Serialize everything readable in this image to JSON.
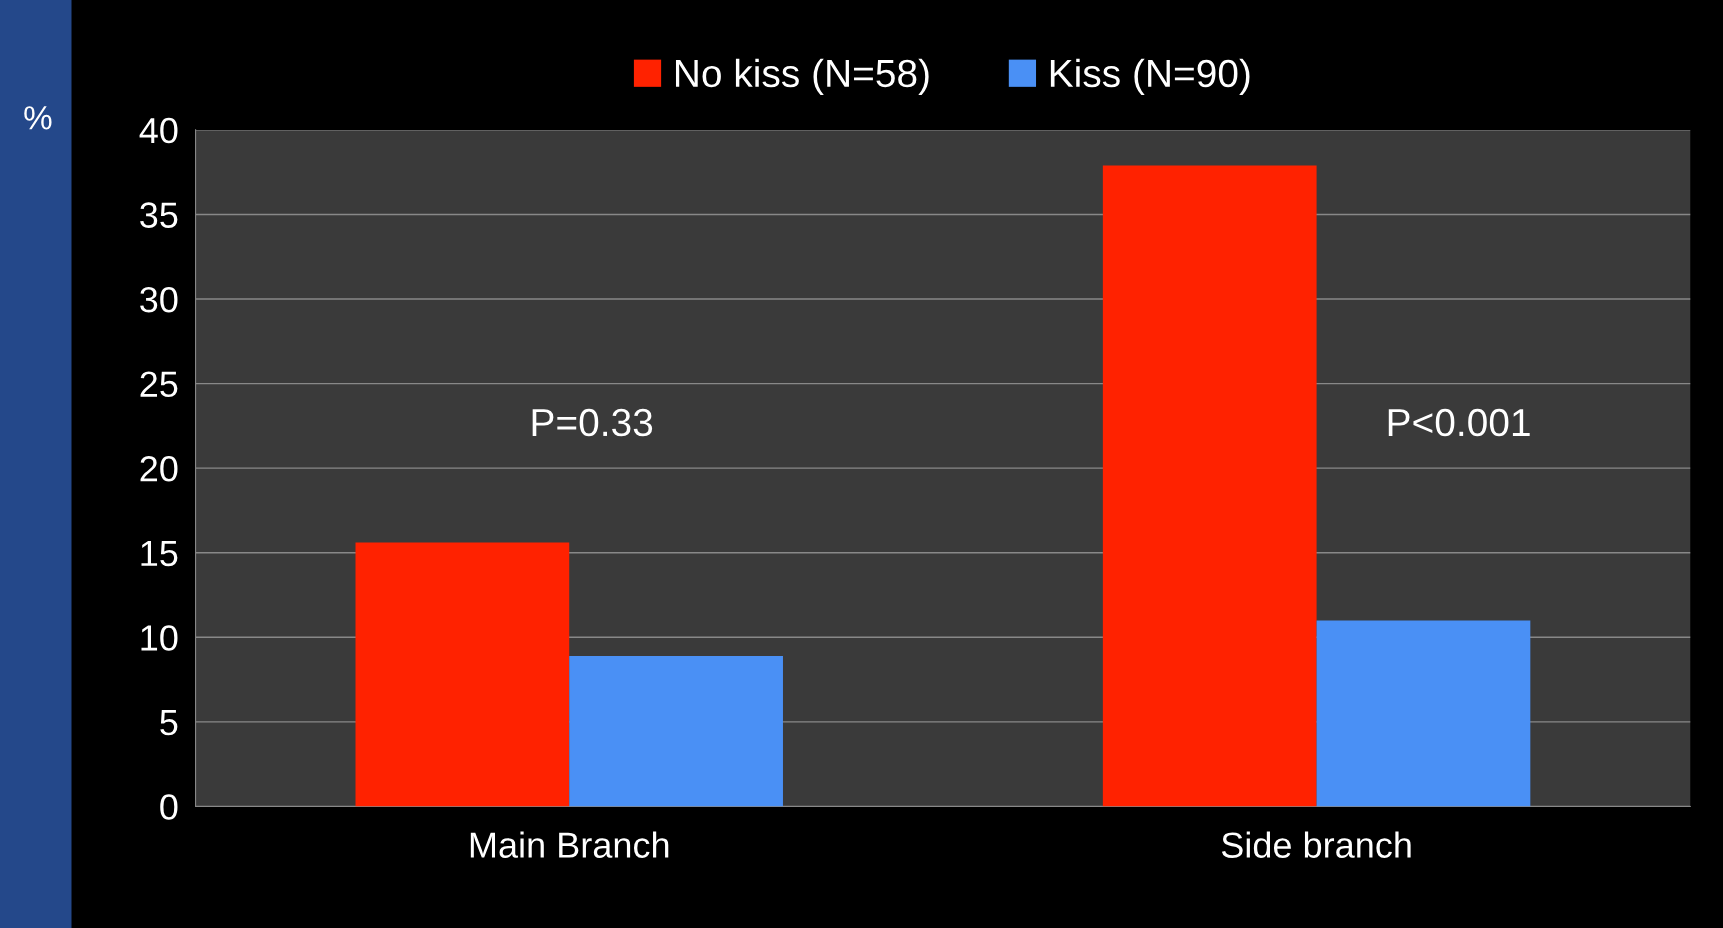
{
  "chart_data": {
    "type": "bar",
    "ylabel": "%",
    "categories": [
      "Main Branch",
      "Side branch"
    ],
    "series": [
      {
        "name": "No kiss (N=58)",
        "color": "#ff2200",
        "values": [
          15.6,
          37.9
        ]
      },
      {
        "name": "Kiss (N=90)",
        "color": "#4a90f5",
        "values": [
          8.9,
          11.0
        ]
      }
    ],
    "ylim": [
      0,
      40
    ],
    "yticks": [
      0,
      5,
      10,
      15,
      20,
      25,
      30,
      35,
      40
    ],
    "grid": "y",
    "legend": "top",
    "annotations": [
      "P=0.33",
      "P<0.001"
    ]
  }
}
